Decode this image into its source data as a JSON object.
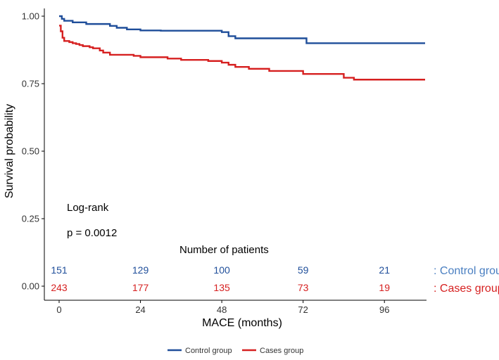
{
  "chart_data": {
    "type": "line",
    "title": "",
    "xlabel": "MACE (months)",
    "ylabel": "Survival probability",
    "xlim": [
      0,
      108
    ],
    "ylim": [
      0,
      1
    ],
    "x_ticks": [
      0,
      24,
      48,
      72,
      96
    ],
    "x_tick_labels": [
      "0",
      "24",
      "48",
      "72",
      "96"
    ],
    "y_ticks": [
      0,
      0.25,
      0.5,
      0.75,
      1.0
    ],
    "y_tick_labels": [
      "0.00",
      "0.25",
      "0.50",
      "0.75",
      "1.00"
    ],
    "grid": false,
    "step": true,
    "series": [
      {
        "name": "Control group",
        "color": "#1f4e9a",
        "points": [
          [
            0,
            1.0
          ],
          [
            0.8,
            0.99
          ],
          [
            1.5,
            0.983
          ],
          [
            4,
            0.977
          ],
          [
            8,
            0.971
          ],
          [
            15,
            0.964
          ],
          [
            17,
            0.957
          ],
          [
            20,
            0.951
          ],
          [
            24,
            0.947
          ],
          [
            30,
            0.946
          ],
          [
            48,
            0.941
          ],
          [
            50,
            0.926
          ],
          [
            52,
            0.918
          ],
          [
            73,
            0.9
          ],
          [
            108,
            0.9
          ]
        ]
      },
      {
        "name": "Cases group",
        "color": "#d62020",
        "points": [
          [
            0,
            0.965
          ],
          [
            0.5,
            0.944
          ],
          [
            1,
            0.92
          ],
          [
            1.5,
            0.908
          ],
          [
            3,
            0.904
          ],
          [
            4,
            0.9
          ],
          [
            5,
            0.897
          ],
          [
            6,
            0.893
          ],
          [
            7,
            0.889
          ],
          [
            9,
            0.885
          ],
          [
            10,
            0.881
          ],
          [
            12,
            0.873
          ],
          [
            13,
            0.865
          ],
          [
            15,
            0.857
          ],
          [
            22,
            0.853
          ],
          [
            24,
            0.848
          ],
          [
            32,
            0.843
          ],
          [
            36,
            0.838
          ],
          [
            44,
            0.834
          ],
          [
            48,
            0.828
          ],
          [
            50,
            0.82
          ],
          [
            52,
            0.812
          ],
          [
            56,
            0.805
          ],
          [
            62,
            0.797
          ],
          [
            72,
            0.786
          ],
          [
            84,
            0.772
          ],
          [
            87,
            0.765
          ],
          [
            108,
            0.765
          ]
        ]
      }
    ],
    "annotations": [
      "Log-rank",
      "p = 0.0012"
    ],
    "risk_table": {
      "title": "Number of patients",
      "times": [
        0,
        24,
        48,
        72,
        96
      ],
      "rows": [
        {
          "label": ": Control group",
          "color": "#1f4e9a",
          "label_color": "#4a7fc1",
          "values": [
            151,
            129,
            100,
            59,
            21
          ]
        },
        {
          "label": ": Cases group",
          "color": "#d62020",
          "label_color": "#d62020",
          "values": [
            243,
            177,
            135,
            73,
            19
          ]
        }
      ]
    },
    "legend": {
      "position": "bottom",
      "entries": [
        "Control group",
        "Cases group"
      ]
    }
  }
}
